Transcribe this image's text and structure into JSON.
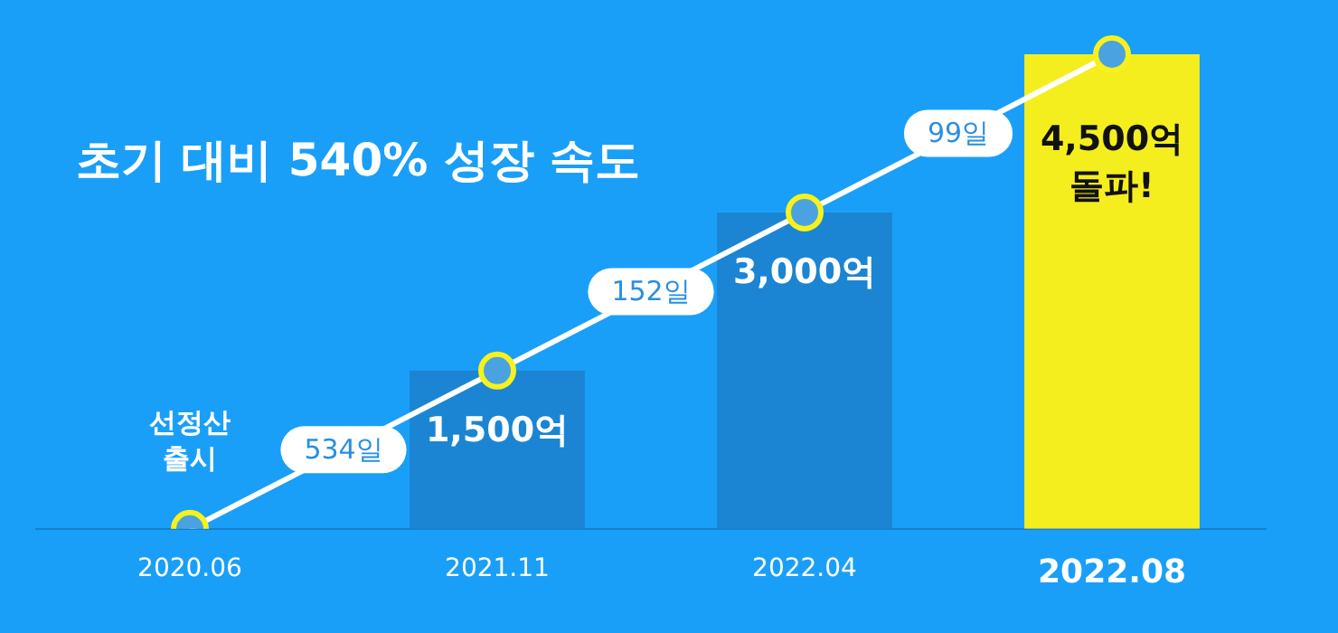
{
  "chart_data": {
    "type": "bar",
    "title": "초기 대비 540% 성장 속도",
    "categories": [
      "2020.06",
      "2021.11",
      "2022.04",
      "2022.08"
    ],
    "series": [
      {
        "colors": [
          "#1b85d3",
          "#1b85d3",
          "#1b85d3",
          "#f5ee1e"
        ],
        "values": [
          null,
          1500,
          3000,
          4500
        ],
        "value_labels": [
          null,
          "1,500억",
          "3,000억",
          "4,500억\n돌파!"
        ]
      },
      {
        "type": "line",
        "color": "#ffffff",
        "values": [
          0,
          1500,
          3000,
          4500
        ]
      }
    ],
    "marker": "circle",
    "annotations": [
      {
        "text": "선정산 출시",
        "x": "2020.06",
        "y": 0
      },
      "534일",
      "152일",
      "99일"
    ],
    "grid": false,
    "legend": false,
    "tick_labels": "x"
  }
}
